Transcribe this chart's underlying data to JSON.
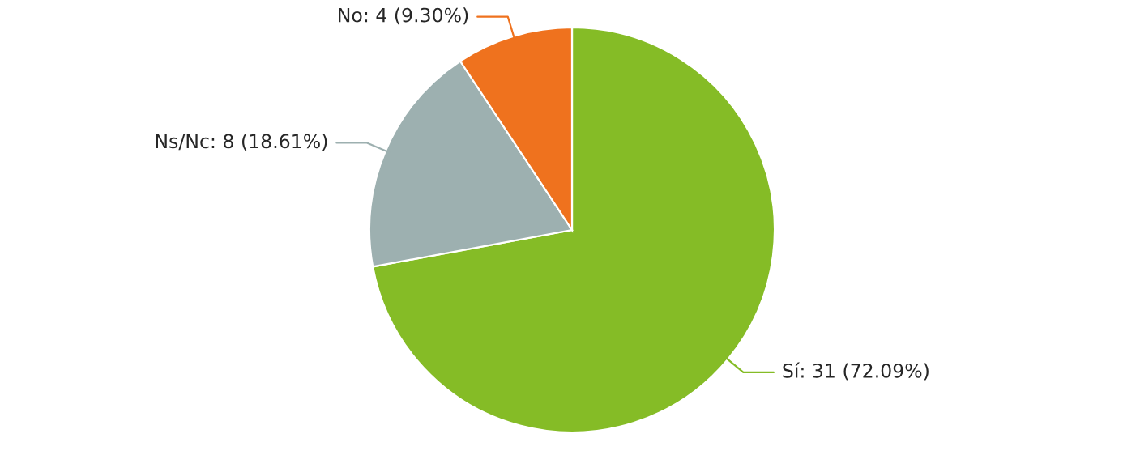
{
  "chart_data": {
    "type": "pie",
    "categories": [
      "Sí",
      "Ns/Nc",
      "No"
    ],
    "values": [
      31,
      8,
      4
    ],
    "value_labels": [
      "31 (72.09%)",
      "8 (18.61%)",
      "4 (9.30%)"
    ],
    "colors": [
      "#85bc26",
      "#9db0b0",
      "#ef721e"
    ]
  }
}
